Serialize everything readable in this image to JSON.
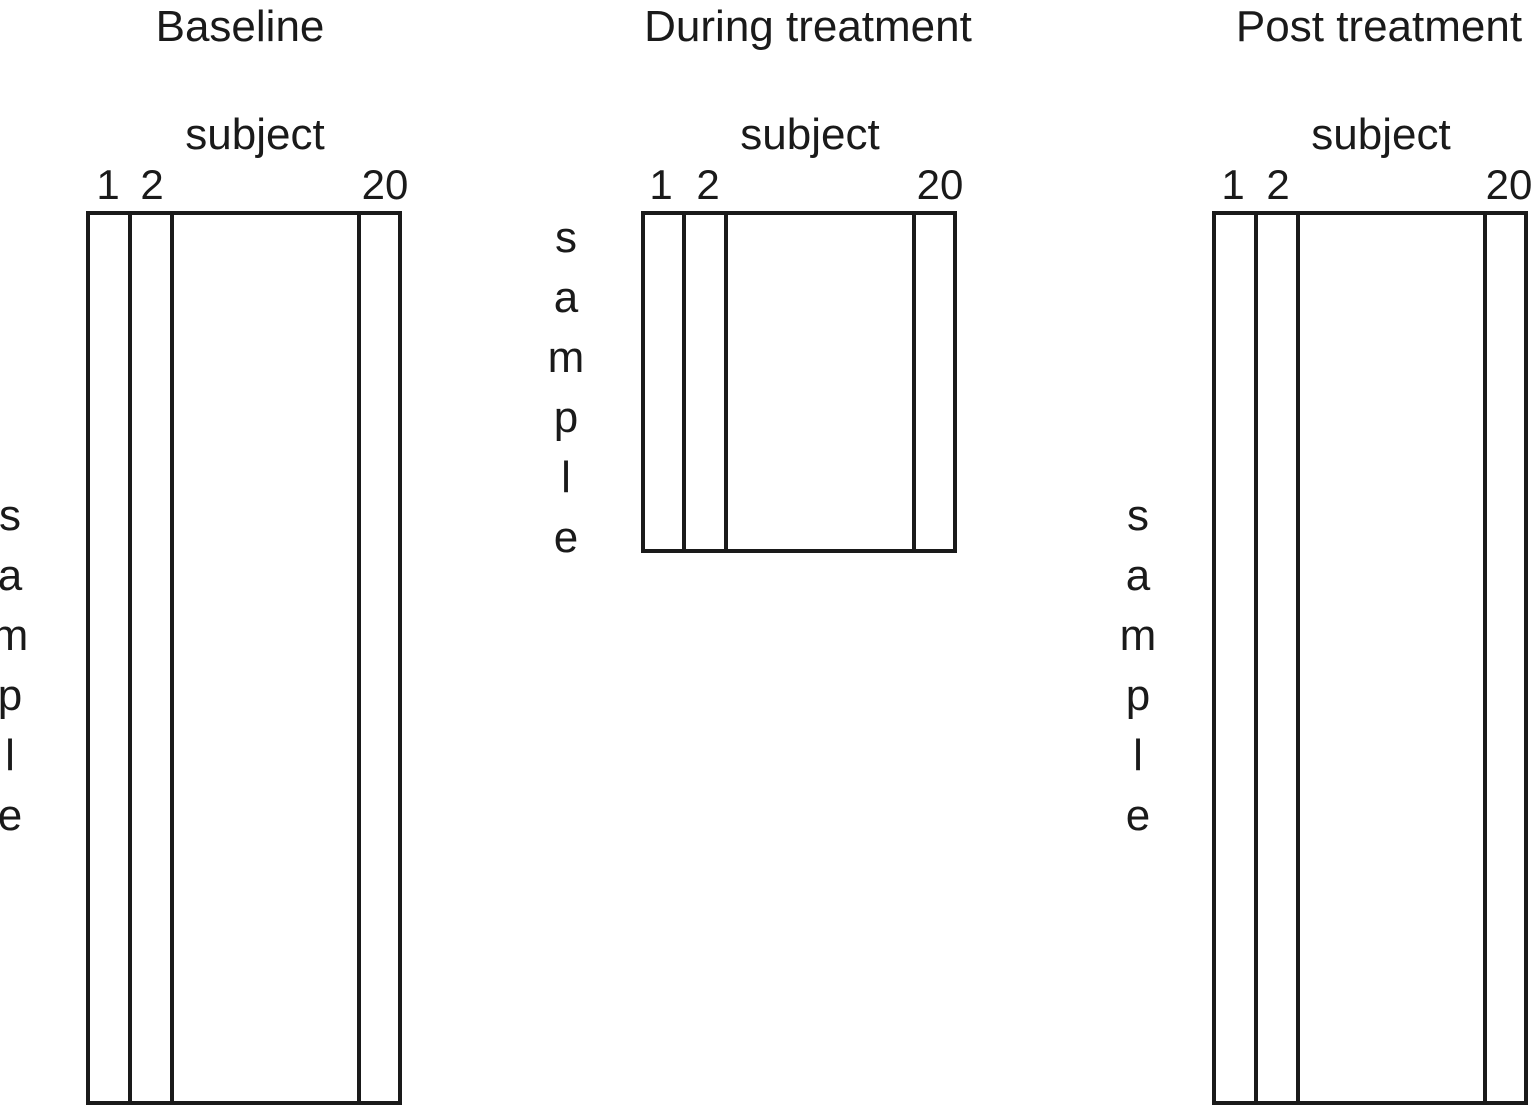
{
  "panels": [
    {
      "title": "Baseline",
      "subject_label": "subject",
      "column_labels": [
        "1",
        "2",
        "20"
      ],
      "sample_label": "sample"
    },
    {
      "title": "During treatment",
      "subject_label": "subject",
      "column_labels": [
        "1",
        "2",
        "20"
      ],
      "sample_label": "sample"
    },
    {
      "title": "Post treatment",
      "subject_label": "subject",
      "column_labels": [
        "1",
        "2",
        "20"
      ],
      "sample_label": "sample"
    }
  ]
}
